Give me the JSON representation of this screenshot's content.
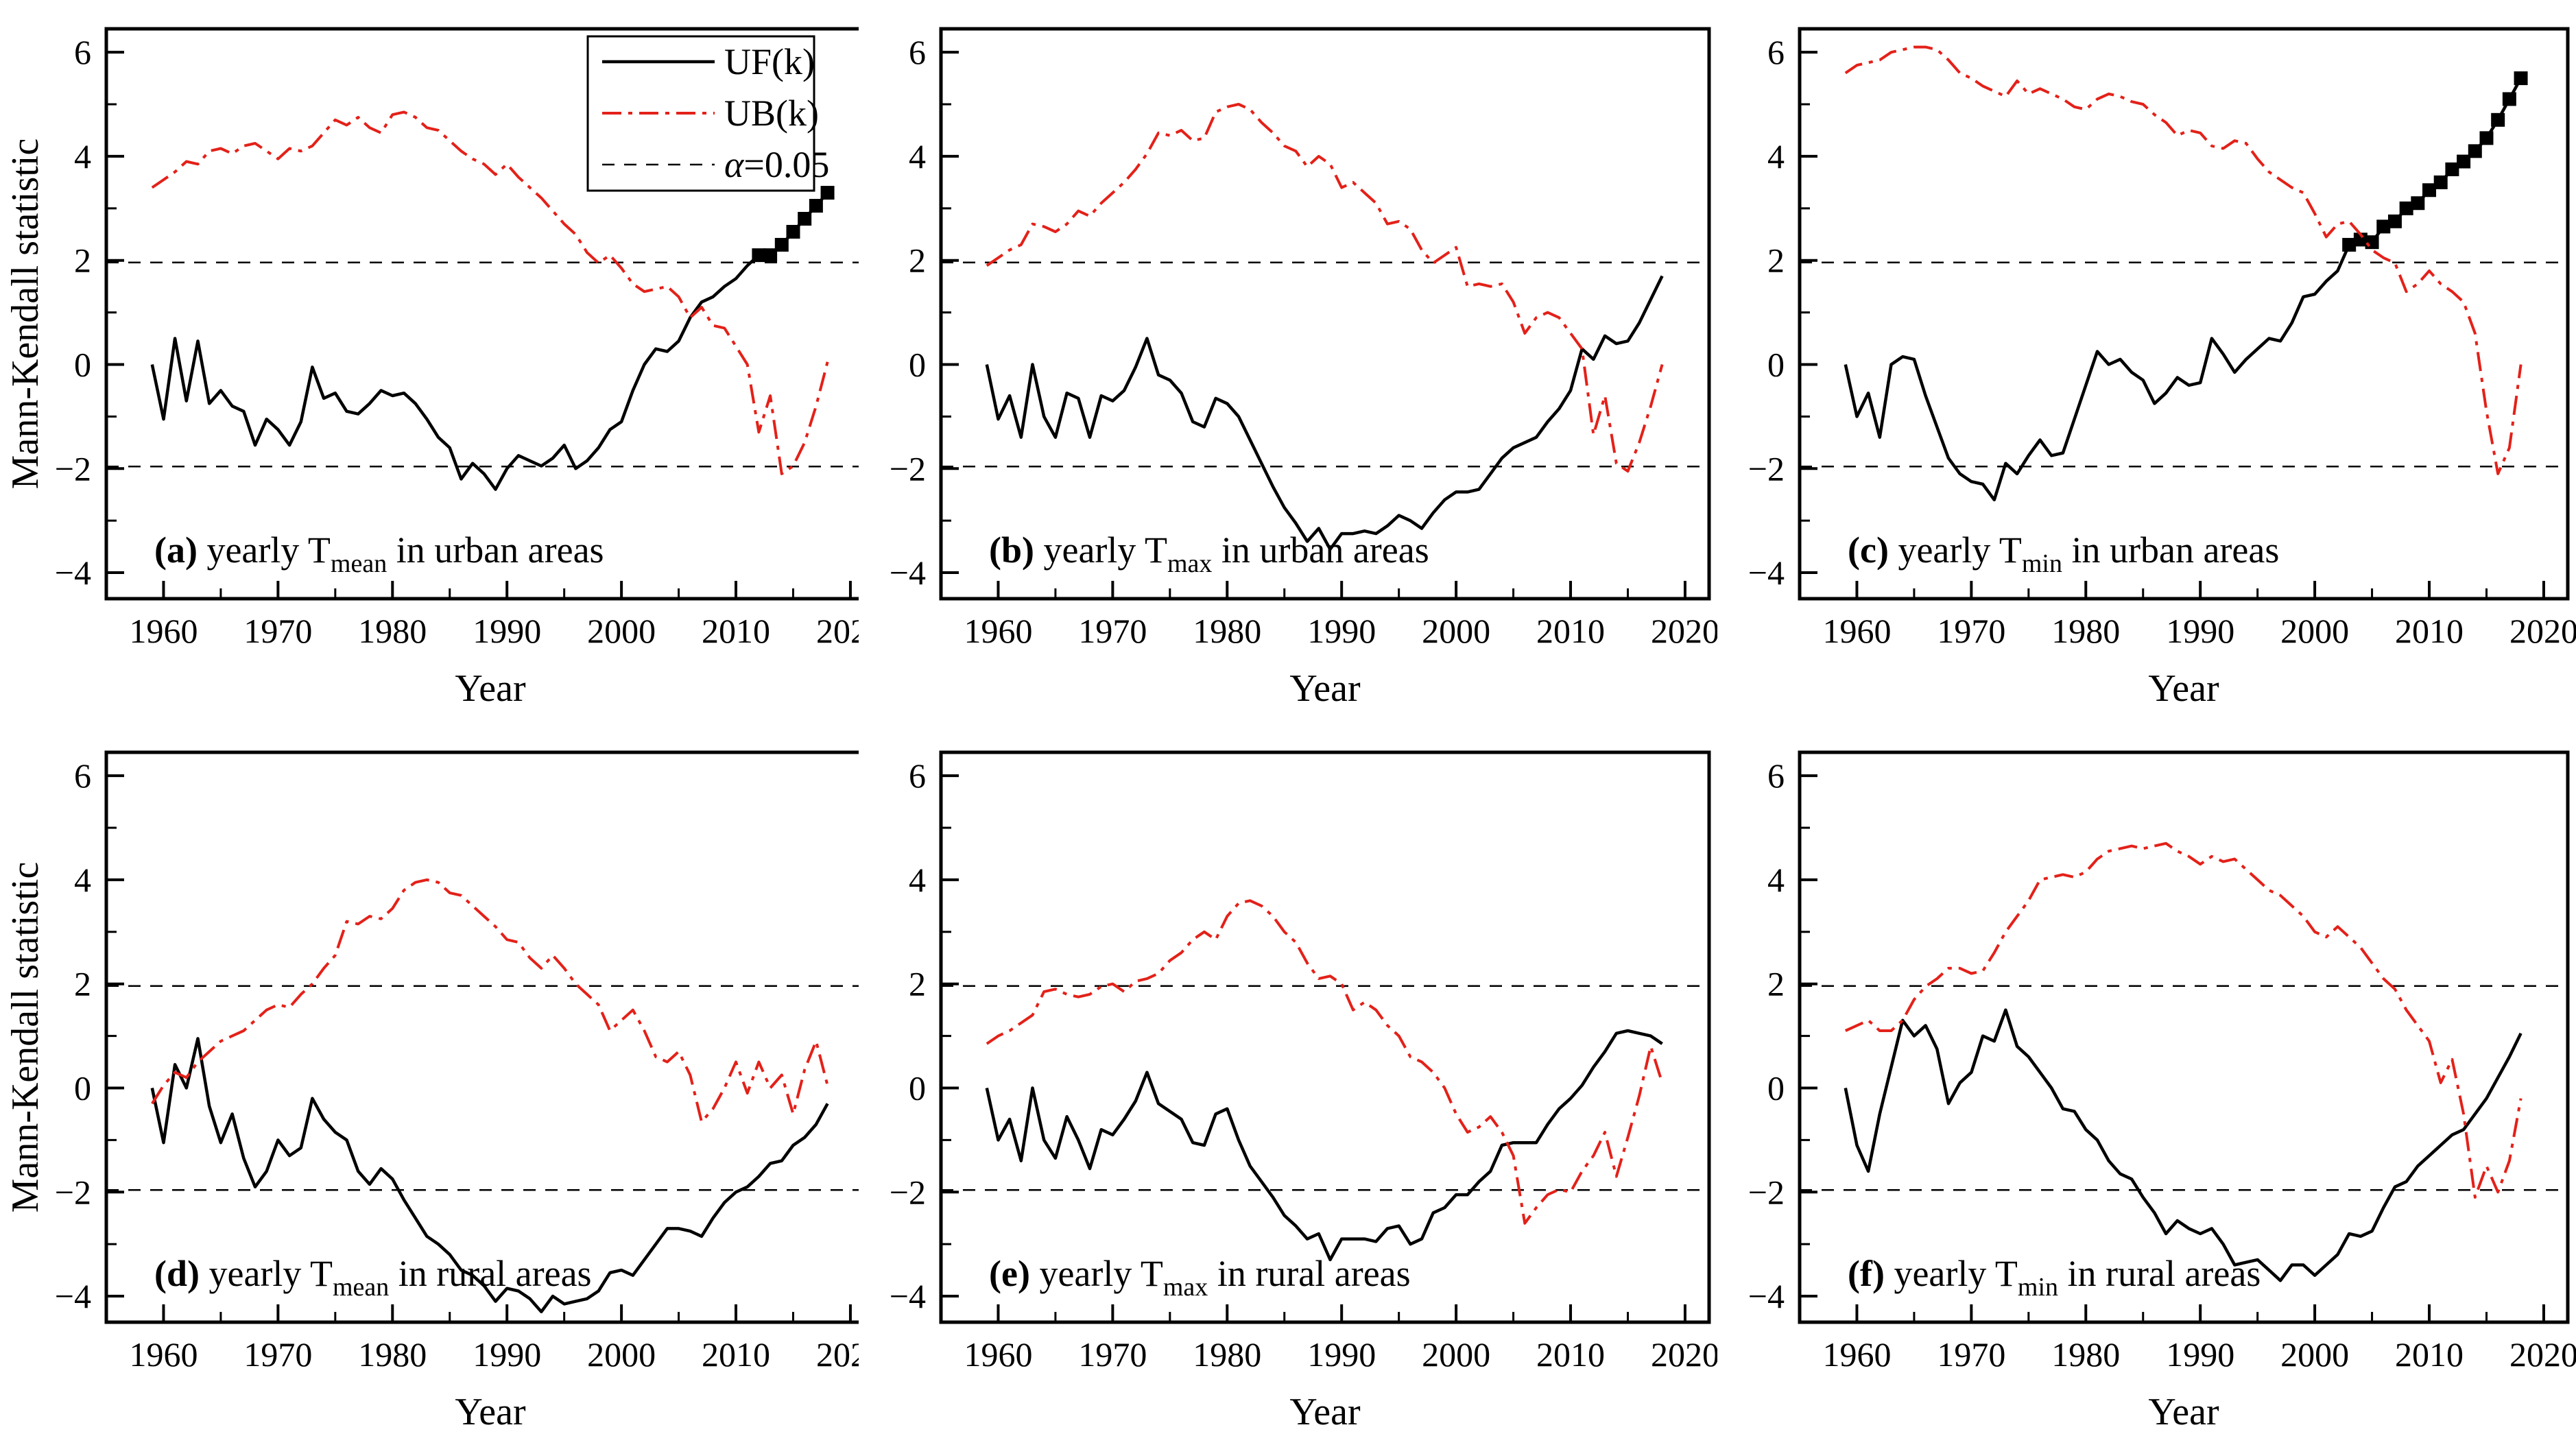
{
  "figure": {
    "background": "#ffffff",
    "xlabel": "Year",
    "ylabel": "Mann-Kendall statistic",
    "uf_color": "#000000",
    "ub_color": "#e32119",
    "legend": {
      "position": "top-right-of-panel-a",
      "items": [
        {
          "label": "UF(k)",
          "style": "solid",
          "color": "#000000"
        },
        {
          "label": "UB(k)",
          "style": "dashdot",
          "color": "#e32119"
        },
        {
          "label": "α=0.05",
          "style": "dash",
          "color": "#000000"
        }
      ]
    }
  },
  "axes": {
    "xlim": [
      1955,
      2022.1
    ],
    "ylim": [
      -4.5,
      6.45
    ],
    "xticks": [
      1960,
      1970,
      1980,
      1990,
      2000,
      2010,
      2020
    ],
    "xticks_minor": [
      1965,
      1975,
      1985,
      1995,
      2005,
      2015
    ],
    "yticks": [
      6,
      4,
      2,
      0,
      -2,
      -4
    ],
    "ytick_labels": [
      "6",
      "4",
      "2",
      "0",
      "−2",
      "−4"
    ],
    "yticks_minor": [
      5,
      3,
      1,
      -1,
      -3
    ],
    "thresholds": [
      1.96,
      -1.96
    ],
    "threshold_label": "α=0.05",
    "grid": false
  },
  "years": [
    1959,
    1960,
    1961,
    1962,
    1963,
    1964,
    1965,
    1966,
    1967,
    1968,
    1969,
    1970,
    1971,
    1972,
    1973,
    1974,
    1975,
    1976,
    1977,
    1978,
    1979,
    1980,
    1981,
    1982,
    1983,
    1984,
    1985,
    1986,
    1987,
    1988,
    1989,
    1990,
    1991,
    1992,
    1993,
    1994,
    1995,
    1996,
    1997,
    1998,
    1999,
    2000,
    2001,
    2002,
    2003,
    2004,
    2005,
    2006,
    2007,
    2008,
    2009,
    2010,
    2011,
    2012,
    2013,
    2014,
    2015,
    2016,
    2017,
    2018
  ],
  "chart_data": [
    {
      "id": "a",
      "type": "line",
      "show_ylabel": true,
      "show_legend": true,
      "panel_label": {
        "letter": "a",
        "pre": " yearly T",
        "sub": "mean",
        "post": " in urban areas"
      },
      "series": [
        {
          "name": "UF(k)",
          "style": "solid",
          "color": "#000000",
          "marker": "square",
          "marker_from_year": 2012,
          "values": [
            0,
            -1.05,
            0.5,
            -0.7,
            0.45,
            -0.75,
            -0.5,
            -0.8,
            -0.9,
            -1.55,
            -1.05,
            -1.25,
            -1.55,
            -1.1,
            -0.05,
            -0.65,
            -0.55,
            -0.9,
            -0.95,
            -0.75,
            -0.5,
            -0.6,
            -0.55,
            -0.75,
            -1.05,
            -1.4,
            -1.6,
            -2.2,
            -1.9,
            -2.1,
            -2.4,
            -2.0,
            -1.75,
            -1.85,
            -1.95,
            -1.8,
            -1.55,
            -2.0,
            -1.85,
            -1.6,
            -1.25,
            -1.1,
            -0.5,
            0.0,
            0.3,
            0.25,
            0.45,
            0.9,
            1.2,
            1.3,
            1.5,
            1.65,
            1.9,
            2.1,
            2.1,
            2.3,
            2.55,
            2.8,
            3.05,
            3.3
          ]
        },
        {
          "name": "UB(k)",
          "style": "dashdot",
          "color": "#e32119",
          "values": [
            3.4,
            3.55,
            3.7,
            3.9,
            3.85,
            4.1,
            4.15,
            4.05,
            4.2,
            4.25,
            4.1,
            3.95,
            4.15,
            4.1,
            4.2,
            4.45,
            4.7,
            4.6,
            4.75,
            4.55,
            4.45,
            4.8,
            4.85,
            4.75,
            4.55,
            4.5,
            4.3,
            4.1,
            3.95,
            3.85,
            3.65,
            3.85,
            3.6,
            3.4,
            3.2,
            2.95,
            2.7,
            2.5,
            2.15,
            1.95,
            2.1,
            1.85,
            1.55,
            1.4,
            1.45,
            1.5,
            1.3,
            0.9,
            1.1,
            0.75,
            0.7,
            0.35,
            0.0,
            -1.3,
            -0.6,
            -2.1,
            -1.95,
            -1.5,
            -0.8,
            0.05
          ]
        }
      ]
    },
    {
      "id": "b",
      "type": "line",
      "show_ylabel": false,
      "show_legend": false,
      "panel_label": {
        "letter": "b",
        "pre": " yearly T",
        "sub": "max",
        "post": " in urban areas"
      },
      "series": [
        {
          "name": "UF(k)",
          "style": "solid",
          "color": "#000000",
          "values": [
            0,
            -1.05,
            -0.6,
            -1.4,
            0,
            -1.0,
            -1.4,
            -0.55,
            -0.65,
            -1.4,
            -0.6,
            -0.7,
            -0.5,
            -0.05,
            0.5,
            -0.2,
            -0.3,
            -0.55,
            -1.1,
            -1.2,
            -0.65,
            -0.75,
            -1.0,
            -1.45,
            -1.9,
            -2.35,
            -2.75,
            -3.05,
            -3.4,
            -3.15,
            -3.55,
            -3.25,
            -3.25,
            -3.2,
            -3.25,
            -3.1,
            -2.9,
            -3.0,
            -3.15,
            -2.85,
            -2.6,
            -2.45,
            -2.45,
            -2.4,
            -2.1,
            -1.8,
            -1.6,
            -1.5,
            -1.4,
            -1.1,
            -0.85,
            -0.5,
            0.3,
            0.1,
            0.55,
            0.4,
            0.45,
            0.8,
            1.25,
            1.7
          ]
        },
        {
          "name": "UB(k)",
          "style": "dashdot",
          "color": "#e32119",
          "values": [
            1.9,
            2.05,
            2.2,
            2.3,
            2.7,
            2.65,
            2.55,
            2.7,
            2.95,
            2.85,
            3.1,
            3.3,
            3.5,
            3.75,
            4.05,
            4.45,
            4.4,
            4.5,
            4.3,
            4.35,
            4.85,
            4.95,
            5.0,
            4.9,
            4.65,
            4.45,
            4.2,
            4.1,
            3.8,
            4.0,
            3.85,
            3.4,
            3.5,
            3.3,
            3.1,
            2.7,
            2.75,
            2.6,
            2.2,
            1.95,
            2.1,
            2.25,
            1.5,
            1.55,
            1.5,
            1.55,
            1.2,
            0.6,
            0.9,
            1.0,
            0.9,
            0.6,
            0.3,
            -1.35,
            -0.6,
            -1.9,
            -2.05,
            -1.5,
            -0.8,
            0.0
          ]
        }
      ]
    },
    {
      "id": "c",
      "type": "line",
      "show_ylabel": false,
      "show_legend": false,
      "panel_label": {
        "letter": "c",
        "pre": " yearly T",
        "sub": "min",
        "post": " in urban areas"
      },
      "series": [
        {
          "name": "UF(k)",
          "style": "solid",
          "color": "#000000",
          "marker": "square",
          "marker_from_year": 2003,
          "values": [
            0,
            -1.0,
            -0.55,
            -1.4,
            0,
            0.15,
            0.1,
            -0.6,
            -1.2,
            -1.8,
            -2.1,
            -2.25,
            -2.3,
            -2.6,
            -1.9,
            -2.1,
            -1.75,
            -1.45,
            -1.75,
            -1.7,
            -1.05,
            -0.4,
            0.25,
            0,
            0.1,
            -0.15,
            -0.3,
            -0.75,
            -0.55,
            -0.25,
            -0.4,
            -0.35,
            0.5,
            0.2,
            -0.15,
            0.1,
            0.3,
            0.5,
            0.45,
            0.8,
            1.3,
            1.35,
            1.6,
            1.8,
            2.3,
            2.4,
            2.35,
            2.65,
            2.75,
            3.0,
            3.1,
            3.35,
            3.5,
            3.75,
            3.9,
            4.1,
            4.35,
            4.7,
            5.1,
            5.5
          ]
        },
        {
          "name": "UB(k)",
          "style": "dashdot",
          "color": "#e32119",
          "values": [
            5.6,
            5.75,
            5.8,
            5.85,
            6.0,
            6.05,
            6.1,
            6.1,
            6.05,
            5.85,
            5.6,
            5.5,
            5.35,
            5.25,
            5.15,
            5.45,
            5.2,
            5.3,
            5.2,
            5.1,
            4.95,
            4.9,
            5.1,
            5.2,
            5.15,
            5.05,
            5.0,
            4.8,
            4.65,
            4.4,
            4.5,
            4.45,
            4.2,
            4.15,
            4.3,
            4.25,
            3.95,
            3.7,
            3.55,
            3.4,
            3.3,
            2.9,
            2.45,
            2.7,
            2.75,
            2.5,
            2.2,
            2.05,
            1.95,
            1.4,
            1.55,
            1.8,
            1.55,
            1.4,
            1.2,
            0.6,
            -0.9,
            -2.1,
            -1.6,
            0.0
          ]
        }
      ]
    },
    {
      "id": "d",
      "type": "line",
      "show_ylabel": true,
      "show_legend": false,
      "panel_label": {
        "letter": "d",
        "pre": " yearly T",
        "sub": "mean",
        "post": " in rural areas"
      },
      "series": [
        {
          "name": "UF(k)",
          "style": "solid",
          "color": "#000000",
          "values": [
            0,
            -1.05,
            0.45,
            0,
            0.95,
            -0.35,
            -1.05,
            -0.5,
            -1.35,
            -1.9,
            -1.6,
            -1.0,
            -1.3,
            -1.15,
            -0.2,
            -0.6,
            -0.85,
            -1.0,
            -1.6,
            -1.85,
            -1.55,
            -1.75,
            -2.15,
            -2.5,
            -2.85,
            -3.0,
            -3.2,
            -3.5,
            -3.6,
            -3.8,
            -4.1,
            -3.85,
            -3.9,
            -4.05,
            -4.3,
            -4.0,
            -4.15,
            -4.1,
            -4.05,
            -3.9,
            -3.55,
            -3.5,
            -3.6,
            -3.3,
            -3.0,
            -2.7,
            -2.7,
            -2.75,
            -2.85,
            -2.5,
            -2.2,
            -2.0,
            -1.9,
            -1.7,
            -1.45,
            -1.4,
            -1.1,
            -0.95,
            -0.7,
            -0.3
          ]
        },
        {
          "name": "UB(k)",
          "style": "dashdot",
          "color": "#e32119",
          "values": [
            -0.3,
            0.05,
            0.3,
            0.2,
            0.5,
            0.7,
            0.9,
            1.0,
            1.1,
            1.3,
            1.5,
            1.6,
            1.55,
            1.8,
            2.0,
            2.3,
            2.55,
            3.2,
            3.15,
            3.3,
            3.25,
            3.45,
            3.8,
            3.95,
            4.0,
            3.95,
            3.75,
            3.7,
            3.5,
            3.3,
            3.1,
            2.85,
            2.8,
            2.5,
            2.3,
            2.55,
            2.3,
            2.0,
            1.8,
            1.6,
            1.1,
            1.3,
            1.5,
            1.1,
            0.6,
            0.5,
            0.7,
            0.25,
            -0.65,
            -0.4,
            0.0,
            0.5,
            -0.1,
            0.5,
            0.0,
            0.25,
            -0.5,
            0.35,
            0.9,
            0.05
          ]
        }
      ]
    },
    {
      "id": "e",
      "type": "line",
      "show_ylabel": false,
      "show_legend": false,
      "panel_label": {
        "letter": "e",
        "pre": " yearly T",
        "sub": "max",
        "post": " in rural areas"
      },
      "series": [
        {
          "name": "UF(k)",
          "style": "solid",
          "color": "#000000",
          "values": [
            0,
            -1.0,
            -0.6,
            -1.4,
            0,
            -1.0,
            -1.35,
            -0.55,
            -1.0,
            -1.55,
            -0.8,
            -0.9,
            -0.6,
            -0.25,
            0.3,
            -0.3,
            -0.45,
            -0.6,
            -1.05,
            -1.1,
            -0.5,
            -0.4,
            -1.0,
            -1.5,
            -1.8,
            -2.1,
            -2.45,
            -2.65,
            -2.9,
            -2.8,
            -3.3,
            -2.9,
            -2.9,
            -2.9,
            -2.95,
            -2.7,
            -2.65,
            -3.0,
            -2.9,
            -2.4,
            -2.3,
            -2.05,
            -2.05,
            -1.8,
            -1.6,
            -1.1,
            -1.05,
            -1.05,
            -1.05,
            -0.7,
            -0.4,
            -0.2,
            0.05,
            0.4,
            0.7,
            1.05,
            1.1,
            1.05,
            1.0,
            0.85
          ]
        },
        {
          "name": "UB(k)",
          "style": "dashdot",
          "color": "#e32119",
          "values": [
            0.85,
            1.0,
            1.1,
            1.25,
            1.4,
            1.85,
            1.9,
            1.8,
            1.75,
            1.8,
            1.95,
            2.0,
            1.85,
            2.05,
            2.1,
            2.2,
            2.45,
            2.6,
            2.85,
            3.0,
            2.85,
            3.3,
            3.55,
            3.6,
            3.5,
            3.3,
            3.0,
            2.8,
            2.4,
            2.1,
            2.15,
            2.0,
            1.5,
            1.65,
            1.5,
            1.2,
            1.0,
            0.6,
            0.5,
            0.3,
            0.0,
            -0.5,
            -0.85,
            -0.75,
            -0.55,
            -0.85,
            -1.3,
            -2.6,
            -2.3,
            -2.05,
            -1.95,
            -2.0,
            -1.6,
            -1.3,
            -0.85,
            -1.7,
            -0.95,
            -0.15,
            0.8,
            0.1
          ]
        }
      ]
    },
    {
      "id": "f",
      "type": "line",
      "show_ylabel": false,
      "show_legend": false,
      "panel_label": {
        "letter": "f",
        "pre": " yearly T",
        "sub": "min",
        "post": " in rural areas"
      },
      "series": [
        {
          "name": "UF(k)",
          "style": "solid",
          "color": "#000000",
          "values": [
            0,
            -1.1,
            -1.6,
            -0.5,
            0.4,
            1.3,
            1.0,
            1.2,
            0.75,
            -0.3,
            0.1,
            0.3,
            1.0,
            0.9,
            1.5,
            0.8,
            0.6,
            0.3,
            0.0,
            -0.4,
            -0.45,
            -0.8,
            -1.0,
            -1.4,
            -1.65,
            -1.75,
            -2.1,
            -2.4,
            -2.8,
            -2.55,
            -2.7,
            -2.8,
            -2.7,
            -3.0,
            -3.4,
            -3.35,
            -3.3,
            -3.5,
            -3.7,
            -3.4,
            -3.4,
            -3.6,
            -3.4,
            -3.2,
            -2.8,
            -2.85,
            -2.75,
            -2.3,
            -1.9,
            -1.8,
            -1.5,
            -1.3,
            -1.1,
            -0.9,
            -0.8,
            -0.5,
            -0.2,
            0.2,
            0.6,
            1.05
          ]
        },
        {
          "name": "UB(k)",
          "style": "dashdot",
          "color": "#e32119",
          "values": [
            1.1,
            1.2,
            1.3,
            1.1,
            1.1,
            1.3,
            1.7,
            1.95,
            2.1,
            2.3,
            2.3,
            2.2,
            2.25,
            2.6,
            3.0,
            3.3,
            3.6,
            4.0,
            4.05,
            4.1,
            4.05,
            4.15,
            4.4,
            4.55,
            4.6,
            4.65,
            4.6,
            4.65,
            4.7,
            4.55,
            4.45,
            4.3,
            4.45,
            4.35,
            4.4,
            4.2,
            4.0,
            3.8,
            3.7,
            3.5,
            3.3,
            3.0,
            2.9,
            3.1,
            2.9,
            2.7,
            2.4,
            2.1,
            1.9,
            1.5,
            1.2,
            0.9,
            0.1,
            0.55,
            -0.5,
            -2.1,
            -1.5,
            -2.0,
            -1.4,
            -0.2
          ]
        }
      ]
    }
  ]
}
